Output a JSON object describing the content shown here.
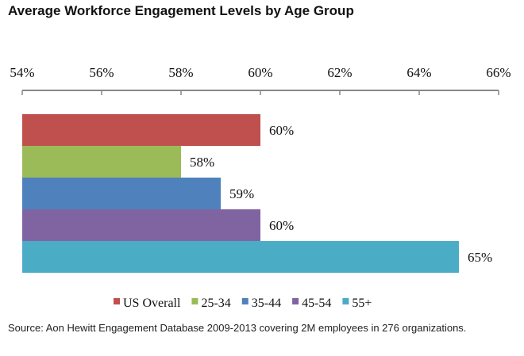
{
  "chart_data": {
    "type": "bar",
    "orientation": "horizontal",
    "title": "Average Workforce Engagement Levels by Age Group",
    "xlim": [
      54,
      66
    ],
    "xticks": [
      "54%",
      "56%",
      "58%",
      "60%",
      "62%",
      "64%",
      "66%"
    ],
    "xtick_values": [
      54,
      56,
      58,
      60,
      62,
      64,
      66
    ],
    "x_axis_position": "top",
    "grid": false,
    "legend_position": "bottom",
    "series": [
      {
        "name": "US Overall",
        "value": 60,
        "label": "60%",
        "color": "#C0504D"
      },
      {
        "name": "25-34",
        "value": 58,
        "label": "58%",
        "color": "#9BBB59"
      },
      {
        "name": "35-44",
        "value": 59,
        "label": "59%",
        "color": "#4F81BD"
      },
      {
        "name": "45-54",
        "value": 60,
        "label": "60%",
        "color": "#8064A2"
      },
      {
        "name": "55+",
        "value": 65,
        "label": "65%",
        "color": "#4BACC6"
      }
    ]
  },
  "source_note": "Source:  Aon Hewitt Engagement Database 2009-2013 covering 2M employees in 276 organizations."
}
